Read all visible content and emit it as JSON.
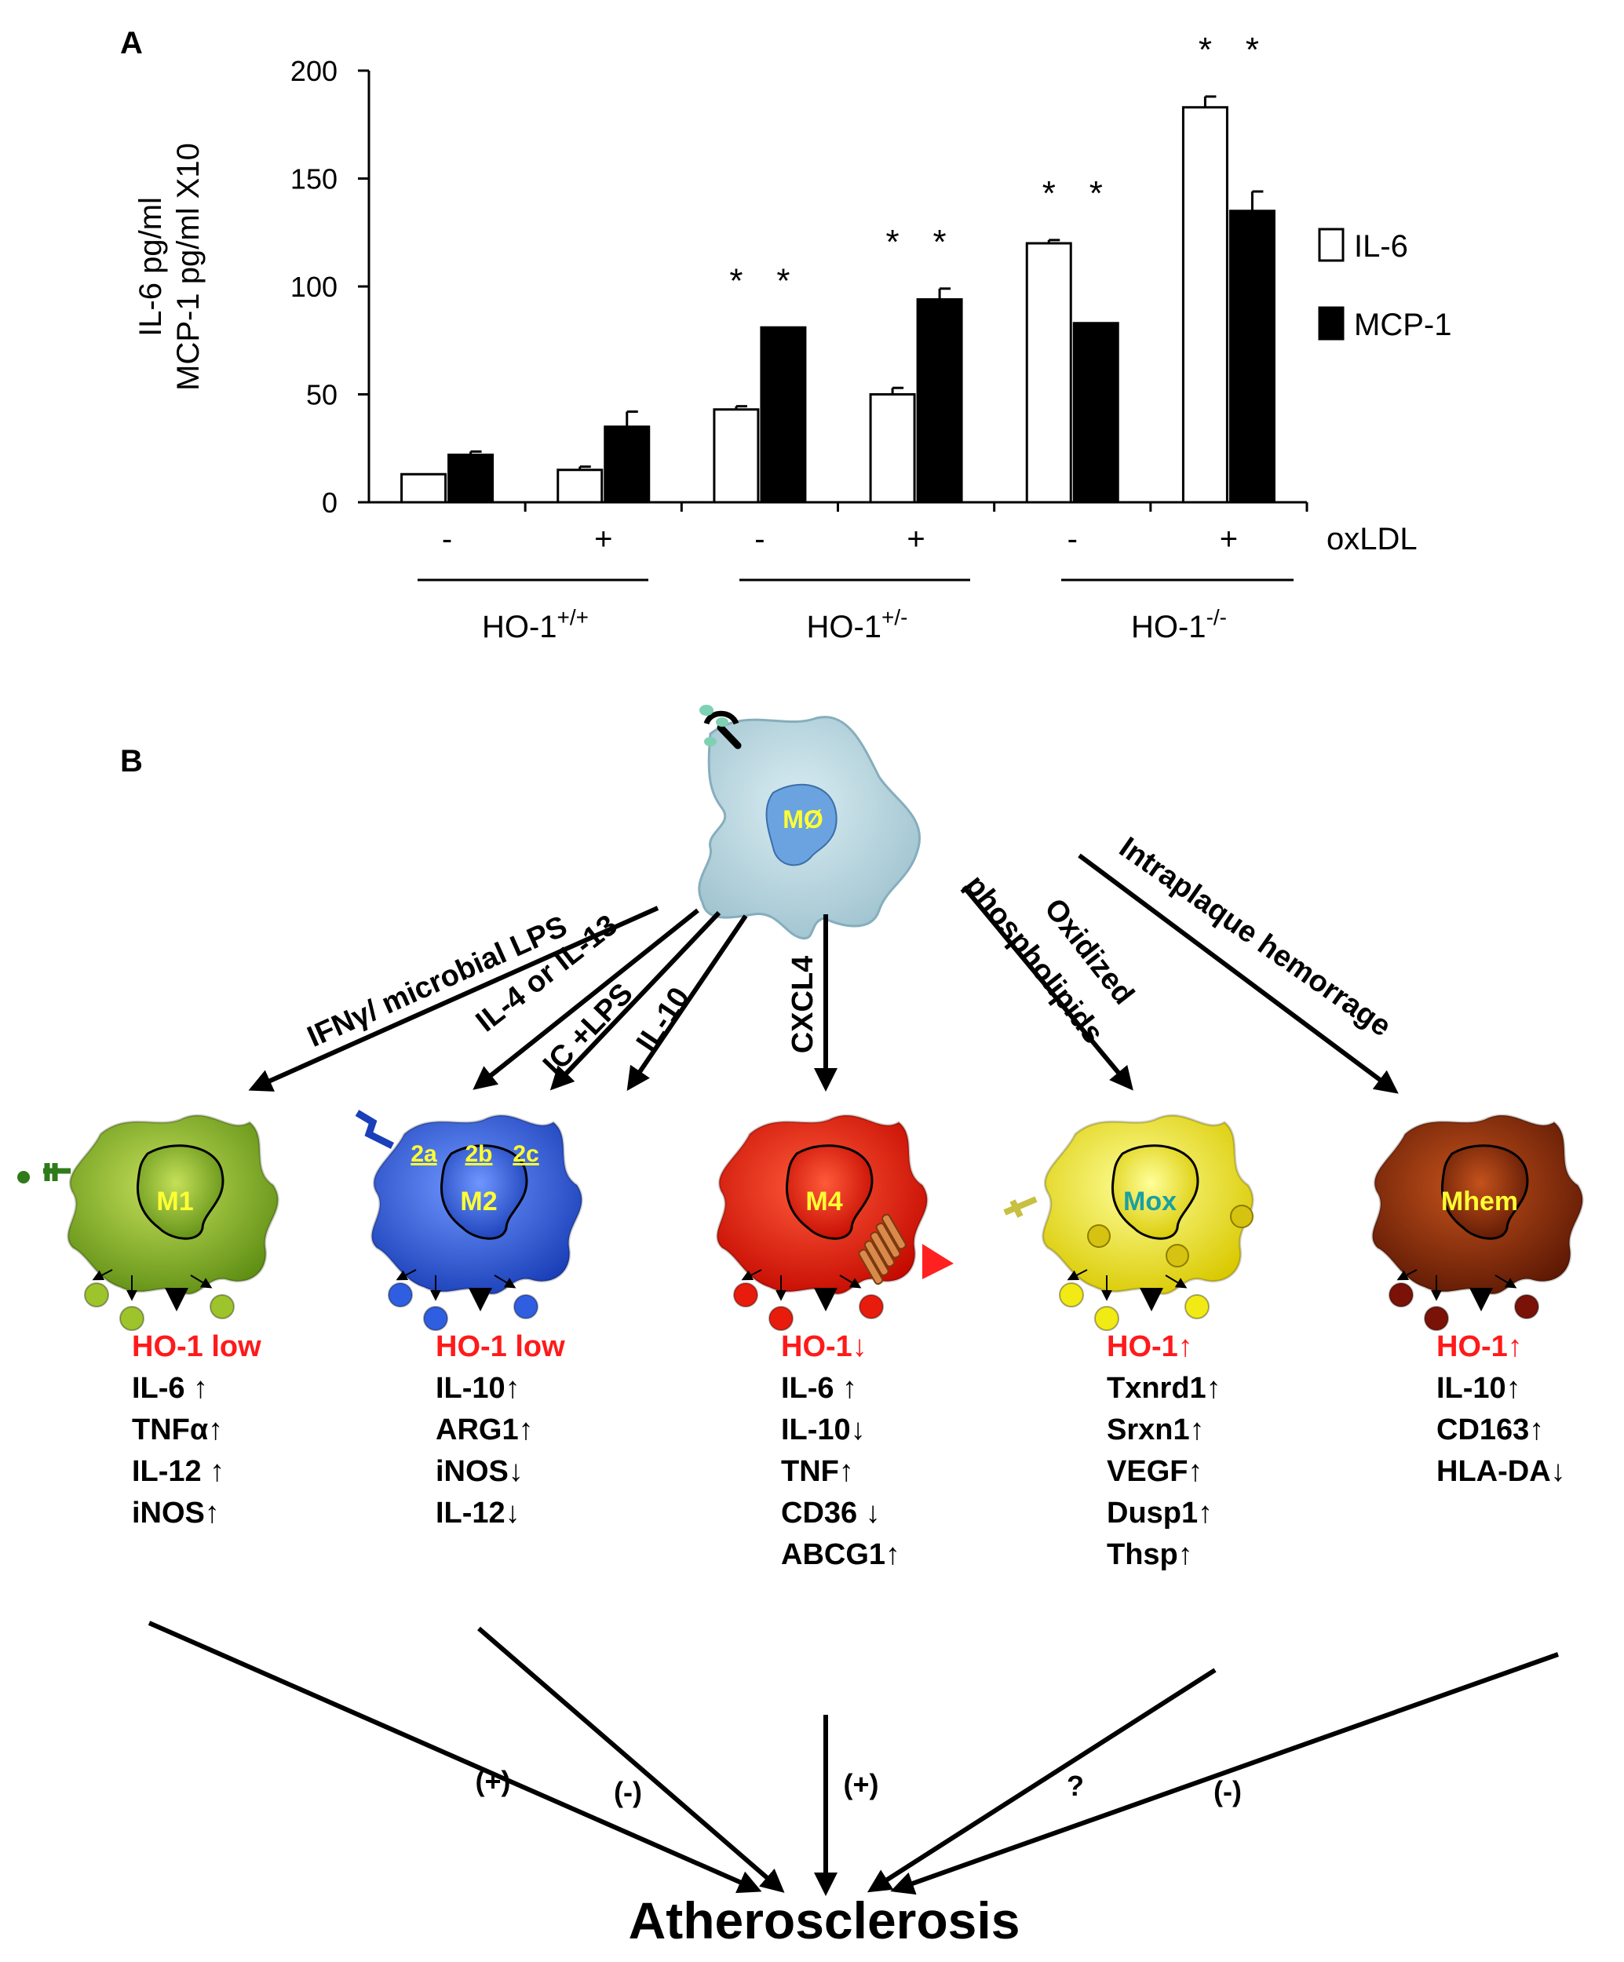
{
  "panel_a": {
    "label": "A",
    "chart_data": {
      "type": "bar",
      "ylabel_lines": [
        "IL-6 pg/ml",
        "MCP-1 pg/ml X10"
      ],
      "ylim": [
        0,
        200
      ],
      "yticks": [
        0,
        50,
        100,
        150,
        200
      ],
      "categories": [
        "-",
        "+",
        "-",
        "+",
        "-",
        "+"
      ],
      "x_row_label": "oxLDL",
      "groups": [
        {
          "label": "HO-1",
          "sup": "+/+"
        },
        {
          "label": "HO-1",
          "sup": "+/-"
        },
        {
          "label": "HO-1",
          "sup": "-/-"
        }
      ],
      "series": [
        {
          "name": "IL-6",
          "color": "#ffffff",
          "values": [
            13,
            15,
            43,
            50,
            120,
            183
          ],
          "errors": [
            0,
            1.5,
            1.5,
            3,
            1.5,
            5
          ]
        },
        {
          "name": "MCP-1",
          "color": "#000000",
          "values": [
            22,
            35,
            81,
            94,
            83,
            135
          ],
          "errors": [
            1.5,
            7,
            0,
            5,
            0,
            9
          ]
        }
      ],
      "significance": [
        {
          "category_index": 2,
          "series_index": 0,
          "mark": "*"
        },
        {
          "category_index": 2,
          "series_index": 1,
          "mark": "*"
        },
        {
          "category_index": 3,
          "series_index": 0,
          "mark": "*"
        },
        {
          "category_index": 3,
          "series_index": 1,
          "mark": "*"
        },
        {
          "category_index": 4,
          "series_index": 0,
          "mark": "*"
        },
        {
          "category_index": 4,
          "series_index": 1,
          "mark": "*"
        },
        {
          "category_index": 5,
          "series_index": 0,
          "mark": "*"
        },
        {
          "category_index": 5,
          "series_index": 1,
          "mark": "*"
        }
      ],
      "legend_position": "right"
    }
  },
  "panel_b": {
    "label": "B",
    "center_cell": "MØ",
    "arrows": {
      "m1": "IFNγ/ microbial LPS",
      "m2_il4": "IL-4 or IL-13",
      "m2_ic": "IC +LPS",
      "m2_il10": "IL-10",
      "m4": "CXCL4",
      "mox_line1": "Oxidized",
      "mox_line2": "phospholipids",
      "mhem": "Intraplaque hemorrage"
    },
    "cells": [
      {
        "key": "m1",
        "name": "M1",
        "color": "#8dbf2a",
        "label_color": "#ffff33",
        "markers": [
          {
            "text": "HO-1 low",
            "highlight": true
          },
          {
            "text": "IL-6 ↑",
            "highlight": false
          },
          {
            "text": "TNFα↑",
            "highlight": false
          },
          {
            "text": "IL-12 ↑",
            "highlight": false
          },
          {
            "text": "iNOS↑",
            "highlight": false
          }
        ],
        "effect": "(+)"
      },
      {
        "key": "m2",
        "name": "M2",
        "color": "#2f5fe0",
        "label_color": "#ffff33",
        "subtypes": [
          "2a",
          "2b",
          "2c"
        ],
        "markers": [
          {
            "text": "HO-1 low",
            "highlight": true
          },
          {
            "text": "IL-10↑",
            "highlight": false
          },
          {
            "text": "ARG1↑",
            "highlight": false
          },
          {
            "text": "iNOS↓",
            "highlight": false
          },
          {
            "text": "IL-12↓",
            "highlight": false
          }
        ],
        "effect": "(-)"
      },
      {
        "key": "m4",
        "name": "M4",
        "color": "#e81c0c",
        "label_color": "#ffff33",
        "markers": [
          {
            "text": "HO-1↓",
            "highlight": true
          },
          {
            "text": "IL-6 ↑",
            "highlight": false
          },
          {
            "text": "IL-10↓",
            "highlight": false
          },
          {
            "text": "TNF↑",
            "highlight": false
          },
          {
            "text": "CD36 ↓",
            "highlight": false
          },
          {
            "text": "ABCG1↑",
            "highlight": false
          }
        ],
        "effect": "(+)"
      },
      {
        "key": "mox",
        "name": "Mox",
        "color": "#f2ea14",
        "label_color": "#1aa0a0",
        "markers": [
          {
            "text": "HO-1↑",
            "highlight": true
          },
          {
            "text": "Txnrd1↑",
            "highlight": false
          },
          {
            "text": "Srxn1↑",
            "highlight": false
          },
          {
            "text": "VEGF↑",
            "highlight": false
          },
          {
            "text": "Dusp1↑",
            "highlight": false
          },
          {
            "text": "Thsp↑",
            "highlight": false
          }
        ],
        "effect": "?"
      },
      {
        "key": "mhem",
        "name": "Mhem",
        "color": "#8a2a0c",
        "label_color": "#ffff33",
        "markers": [
          {
            "text": "HO-1↑",
            "highlight": true
          },
          {
            "text": "IL-10↑",
            "highlight": false
          },
          {
            "text": "CD163↑",
            "highlight": false
          },
          {
            "text": "HLA-DA↓",
            "highlight": false
          }
        ],
        "effect": "(-)"
      }
    ],
    "outcome": "Atherosclerosis"
  }
}
